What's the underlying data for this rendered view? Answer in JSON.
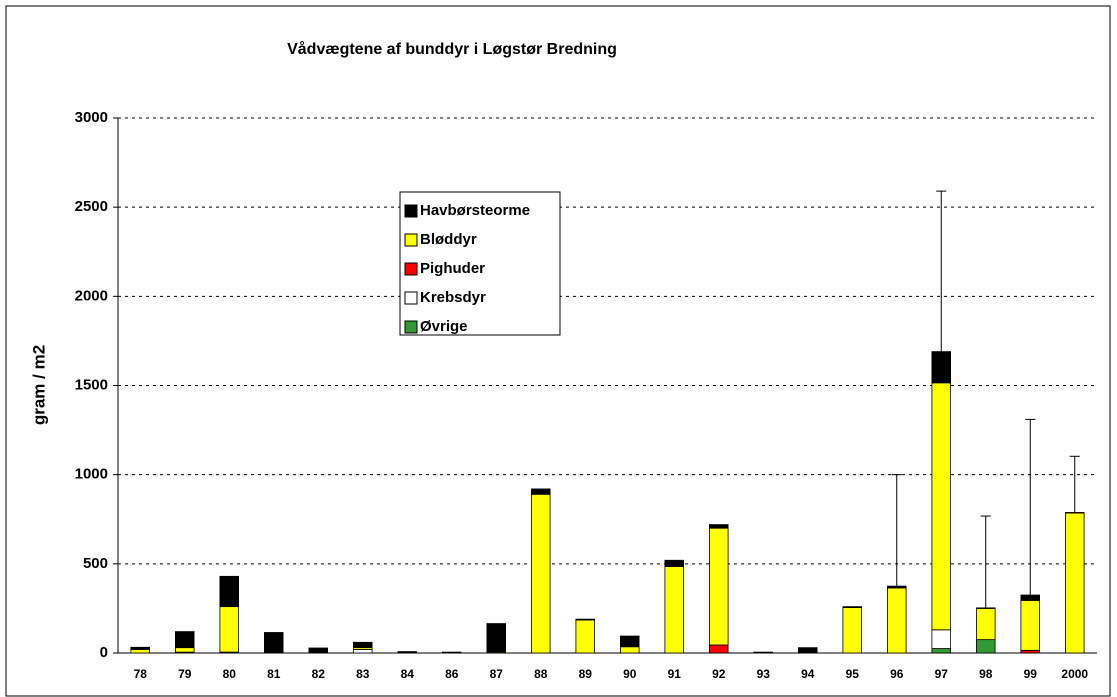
{
  "chart_data": {
    "type": "stacked_bar",
    "title": "Vådvægtene af bunddyr i Løgstør Bredning",
    "y_label": "gram / m2",
    "categories": [
      "78",
      "79",
      "80",
      "81",
      "82",
      "83",
      "84",
      "86",
      "87",
      "88",
      "89",
      "90",
      "91",
      "92",
      "93",
      "94",
      "95",
      "96",
      "97",
      "98",
      "99",
      "2000"
    ],
    "series": [
      {
        "name": "Øvrige",
        "color": "#339933",
        "values": [
          0,
          0,
          5,
          0,
          0,
          0,
          0,
          0,
          0,
          0,
          0,
          0,
          0,
          0,
          0,
          0,
          0,
          0,
          25,
          75,
          0,
          0
        ]
      },
      {
        "name": "Krebsdyr",
        "color": "#ffffff",
        "values": [
          0,
          0,
          0,
          0,
          0,
          20,
          0,
          0,
          0,
          0,
          0,
          0,
          0,
          0,
          0,
          0,
          0,
          0,
          105,
          0,
          0,
          0
        ]
      },
      {
        "name": "Pighuder",
        "color": "#ff0000",
        "values": [
          0,
          5,
          0,
          0,
          0,
          0,
          0,
          0,
          0,
          0,
          0,
          0,
          0,
          45,
          0,
          0,
          0,
          0,
          0,
          0,
          15,
          0
        ]
      },
      {
        "name": "Bløddyr",
        "color": "#ffff00",
        "values": [
          20,
          25,
          255,
          3,
          0,
          10,
          0,
          0,
          5,
          890,
          185,
          35,
          485,
          655,
          0,
          0,
          255,
          365,
          1385,
          175,
          280,
          785
        ]
      },
      {
        "name": "Havbørsteorme",
        "color": "#000000",
        "values": [
          12,
          90,
          170,
          112,
          28,
          30,
          8,
          5,
          160,
          30,
          5,
          60,
          35,
          20,
          5,
          30,
          5,
          10,
          175,
          3,
          30,
          3
        ]
      }
    ],
    "errors": [
      null,
      null,
      null,
      null,
      null,
      null,
      null,
      null,
      null,
      null,
      null,
      null,
      null,
      null,
      null,
      null,
      null,
      625,
      900,
      515,
      985,
      315
    ],
    "ylim": [
      0,
      3000
    ],
    "yticks": [
      0,
      500,
      1000,
      1500,
      2000,
      2500,
      3000
    ],
    "grid": true
  }
}
